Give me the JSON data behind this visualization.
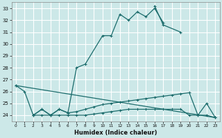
{
  "title": "",
  "xlabel": "Humidex (Indice chaleur)",
  "bg_color": "#cce8e8",
  "line_color": "#1a6b6b",
  "grid_color": "#ffffff",
  "xlim": [
    -0.5,
    23.5
  ],
  "ylim": [
    23.5,
    33.5
  ],
  "xticks": [
    0,
    1,
    2,
    3,
    4,
    5,
    6,
    7,
    8,
    9,
    10,
    11,
    12,
    13,
    14,
    15,
    16,
    17,
    18,
    19,
    20,
    21,
    22,
    23
  ],
  "yticks": [
    24,
    25,
    26,
    27,
    28,
    29,
    30,
    31,
    32,
    33
  ],
  "series1_x": [
    0,
    1,
    2,
    3,
    4,
    5,
    6,
    7,
    8,
    10,
    11,
    12,
    13,
    14,
    15,
    16,
    17
  ],
  "series1_y": [
    26.5,
    26.0,
    24.0,
    24.5,
    24.0,
    24.5,
    24.2,
    28.0,
    28.3,
    30.7,
    30.7,
    32.5,
    32.0,
    32.7,
    32.3,
    33.0,
    31.8
  ],
  "series2_x": [
    16,
    17,
    19
  ],
  "series2_y": [
    33.2,
    31.6,
    31.0
  ],
  "series3_x": [
    0,
    23
  ],
  "series3_y": [
    26.5,
    23.8
  ],
  "series4_x": [
    2,
    3,
    4,
    5,
    6,
    7,
    8,
    9,
    10,
    11,
    12,
    13,
    14,
    15,
    16,
    17,
    18,
    19,
    20,
    21,
    22,
    23
  ],
  "series4_y": [
    24.0,
    24.5,
    24.0,
    24.5,
    24.2,
    24.3,
    24.5,
    24.7,
    24.9,
    25.0,
    25.1,
    25.2,
    25.3,
    25.4,
    25.5,
    25.6,
    25.7,
    25.8,
    25.9,
    24.0,
    25.0,
    23.8
  ],
  "series5_x": [
    2,
    3,
    4,
    5,
    6,
    7,
    8,
    9,
    10,
    11,
    12,
    13,
    14,
    15,
    16,
    17,
    18,
    19,
    20,
    21,
    22,
    23
  ],
  "series5_y": [
    24.0,
    24.0,
    24.0,
    24.0,
    24.0,
    24.0,
    24.0,
    24.1,
    24.2,
    24.3,
    24.4,
    24.5,
    24.5,
    24.5,
    24.5,
    24.5,
    24.5,
    24.5,
    24.0,
    24.0,
    24.0,
    23.8
  ]
}
